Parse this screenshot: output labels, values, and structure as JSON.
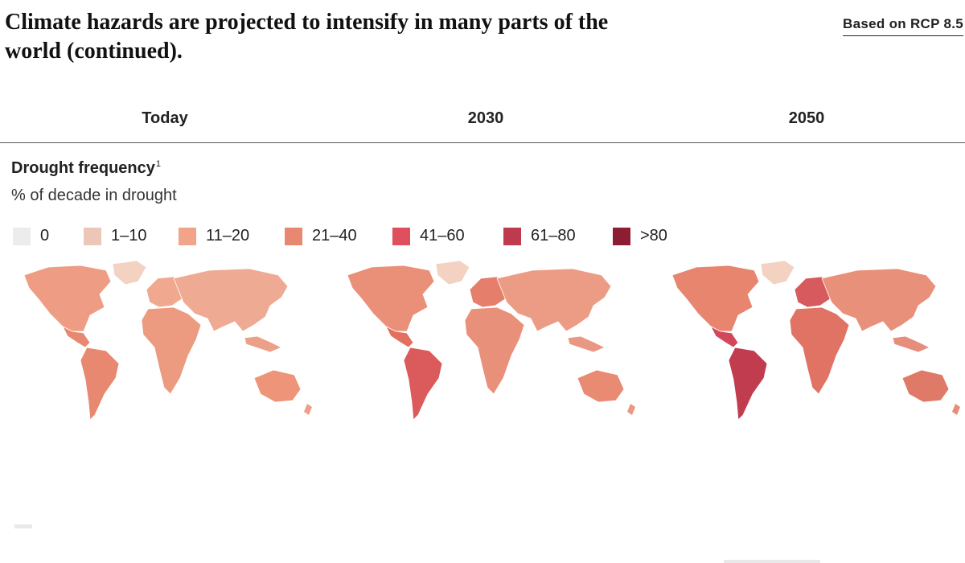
{
  "header": {
    "title": "Climate hazards are projected to intensify in many parts of the world (continued).",
    "badge": "Based on RCP 8.5"
  },
  "columns": [
    "Today",
    "2030",
    "2050"
  ],
  "metric": {
    "name": "Drought frequency",
    "footnote": "1",
    "unit": "% of decade in drought"
  },
  "legend": [
    {
      "label": "0",
      "color": "#ececec"
    },
    {
      "label": "1–10",
      "color": "#ecc6b6"
    },
    {
      "label": "11–20",
      "color": "#f2a48a"
    },
    {
      "label": "21–40",
      "color": "#e98870"
    },
    {
      "label": "41–60",
      "color": "#df4f5e"
    },
    {
      "label": "61–80",
      "color": "#c03a4f"
    },
    {
      "label": ">80",
      "color": "#8d1d33"
    }
  ],
  "maps": [
    {
      "period": "Today",
      "north_america": "#ee9c84",
      "greenland": "#f4d2c2",
      "central_america": "#e98870",
      "south_america": "#e98870",
      "europe": "#f0a88e",
      "asia": "#eeaa92",
      "africa": "#ec9a80",
      "australia": "#ee9478",
      "islands": "#eca088"
    },
    {
      "period": "2030",
      "north_america": "#ea9078",
      "greenland": "#f4d2c2",
      "central_america": "#e3705e",
      "south_america": "#db5a5c",
      "europe": "#e57f6c",
      "asia": "#ec9c84",
      "africa": "#e9907a",
      "australia": "#e98a72",
      "islands": "#e99884"
    },
    {
      "period": "2050",
      "north_america": "#e7856e",
      "greenland": "#f4d2c2",
      "central_america": "#d2475a",
      "south_america": "#c23c50",
      "europe": "#d65a5e",
      "asia": "#e9907a",
      "africa": "#e07364",
      "australia": "#e07a68",
      "islands": "#e58e7c"
    }
  ]
}
